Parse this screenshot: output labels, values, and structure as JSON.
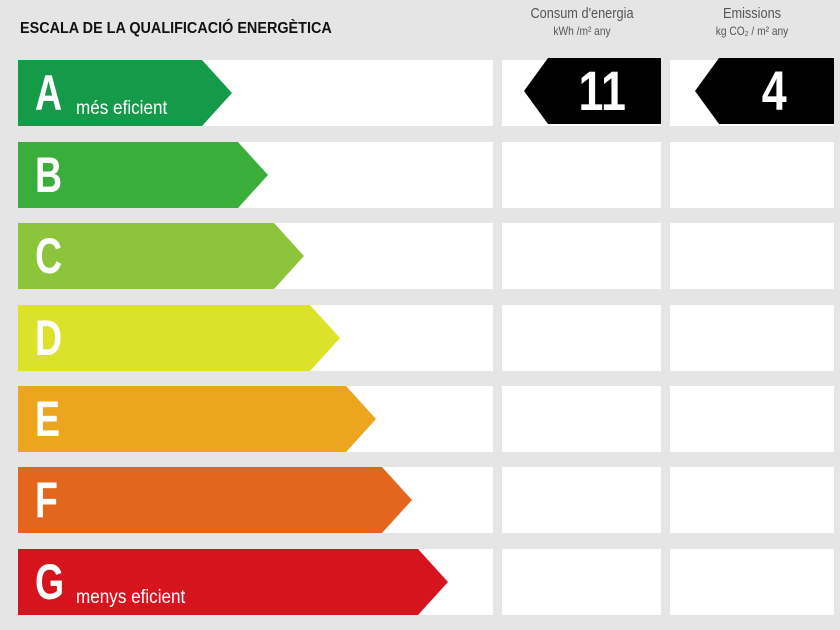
{
  "title": "ESCALA DE LA QUALIFICACIÓ ENERGÈTICA",
  "columns": [
    {
      "label": "Consum d'energia",
      "unit": "kWh /m² any"
    },
    {
      "label": "Emissions",
      "unit": "kg CO₂ / m² any"
    }
  ],
  "ratings": [
    {
      "letter": "A",
      "desc": "més eficient",
      "color": "#149a48"
    },
    {
      "letter": "B",
      "desc": "",
      "color": "#3aad3a"
    },
    {
      "letter": "C",
      "desc": "",
      "color": "#8cc43c"
    },
    {
      "letter": "D",
      "desc": "",
      "color": "#dce22a"
    },
    {
      "letter": "E",
      "desc": "",
      "color": "#eba51e"
    },
    {
      "letter": "F",
      "desc": "",
      "color": "#e2661d"
    },
    {
      "letter": "G",
      "desc": "menys eficient",
      "color": "#d6141e"
    }
  ],
  "current_rating": "A",
  "values": {
    "consum": "11",
    "emissions": "4"
  }
}
